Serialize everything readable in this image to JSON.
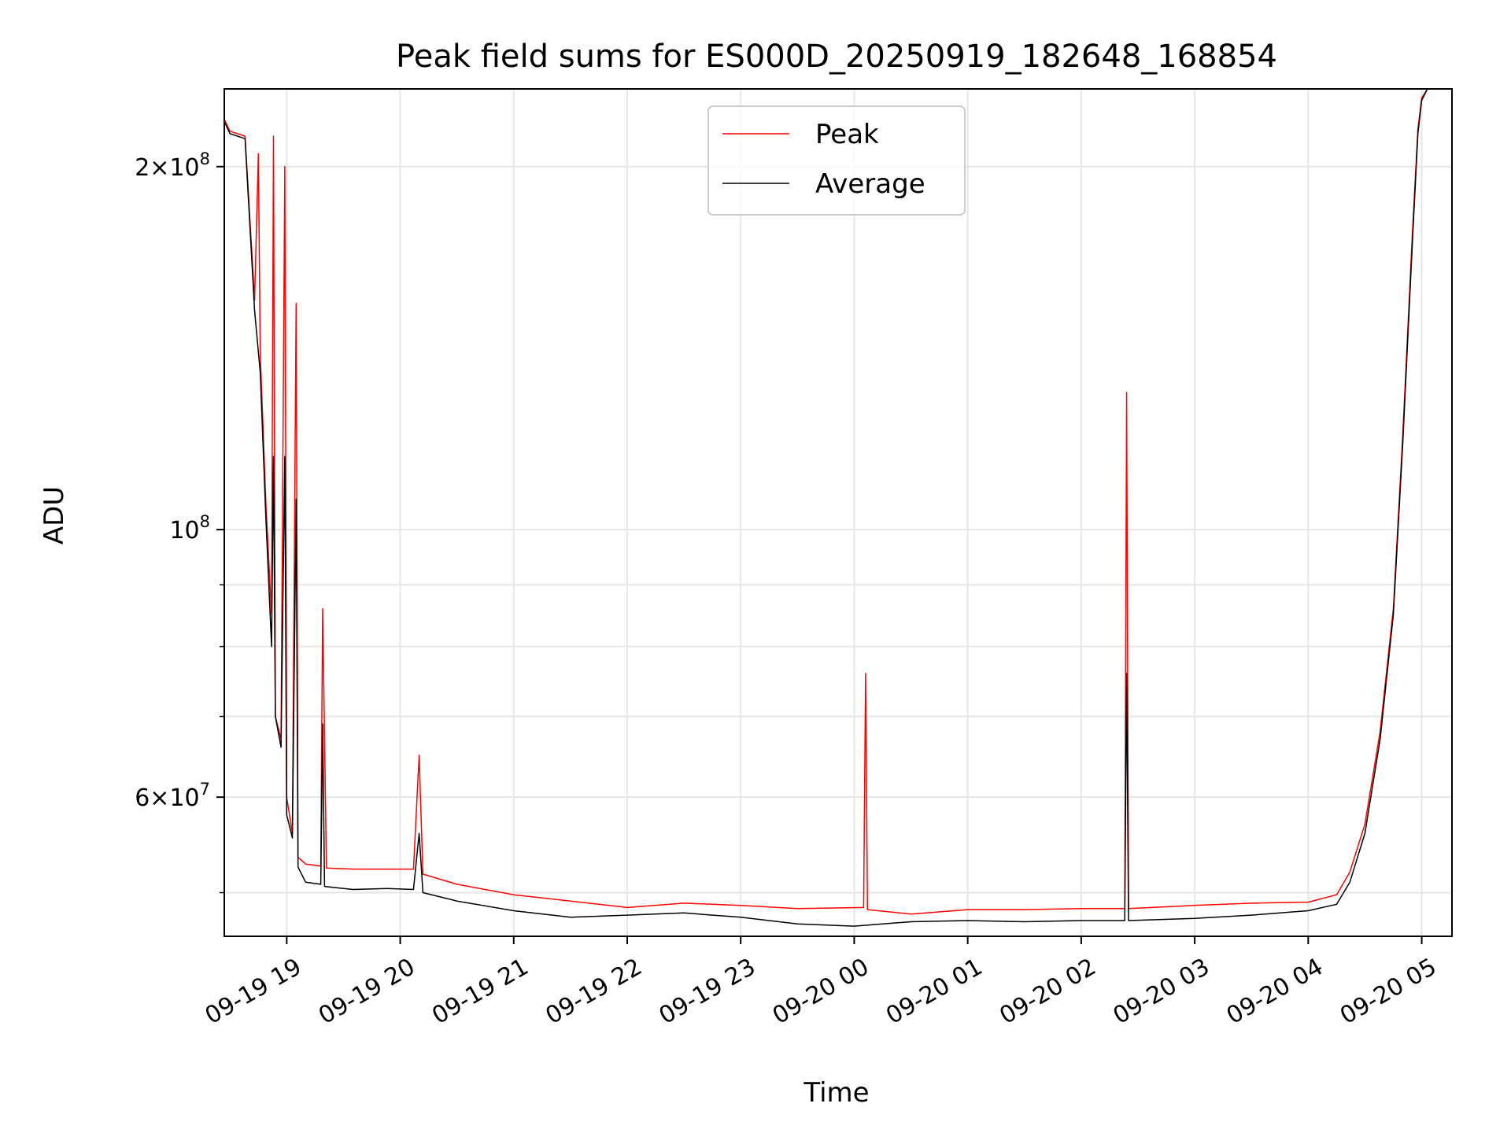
{
  "chart_data": {
    "type": "line",
    "title": "Peak field sums for ES000D_20250919_182648_168854",
    "xlabel": "Time",
    "ylabel": "ADU",
    "yscale": "log",
    "ylim": [
      46000000,
      232000000
    ],
    "xlim": [
      "2025-09-19 18:27",
      "2025-09-20 05:16"
    ],
    "grid": true,
    "legend_position": "upper center",
    "x_ticks": [
      {
        "t": "2025-09-19 19:00",
        "label": "09-19 19"
      },
      {
        "t": "2025-09-19 20:00",
        "label": "09-19 20"
      },
      {
        "t": "2025-09-19 21:00",
        "label": "09-19 21"
      },
      {
        "t": "2025-09-19 22:00",
        "label": "09-19 22"
      },
      {
        "t": "2025-09-19 23:00",
        "label": "09-19 23"
      },
      {
        "t": "2025-09-20 00:00",
        "label": "09-20 00"
      },
      {
        "t": "2025-09-20 01:00",
        "label": "09-20 01"
      },
      {
        "t": "2025-09-20 02:00",
        "label": "09-20 02"
      },
      {
        "t": "2025-09-20 03:00",
        "label": "09-20 03"
      },
      {
        "t": "2025-09-20 04:00",
        "label": "09-20 04"
      },
      {
        "t": "2025-09-20 05:00",
        "label": "09-20 05"
      }
    ],
    "y_ticks": [
      {
        "v": 60000000,
        "base": "6",
        "exp": "7",
        "sci": true
      },
      {
        "v": 100000000,
        "base": "10",
        "exp": "8",
        "sci": false
      },
      {
        "v": 200000000,
        "base": "2",
        "exp": "8",
        "sci": true
      }
    ],
    "y_minor_ticks": [
      50000000,
      70000000,
      80000000,
      90000000
    ],
    "series": [
      {
        "name": "Peak",
        "color": "#ff0000",
        "points": [
          [
            "2025-09-19 18:27",
            219000000
          ],
          [
            "2025-09-19 18:30",
            214000000
          ],
          [
            "2025-09-19 18:38",
            212000000
          ],
          [
            "2025-09-19 18:43",
            155000000
          ],
          [
            "2025-09-19 18:45",
            205000000
          ],
          [
            "2025-09-19 18:46",
            140000000
          ],
          [
            "2025-09-19 18:49",
            105000000
          ],
          [
            "2025-09-19 18:52",
            85000000
          ],
          [
            "2025-09-19 18:53",
            212000000
          ],
          [
            "2025-09-19 18:54",
            70000000
          ],
          [
            "2025-09-19 18:57",
            67000000
          ],
          [
            "2025-09-19 18:59",
            200000000
          ],
          [
            "2025-09-19 19:00",
            60000000
          ],
          [
            "2025-09-19 19:03",
            56000000
          ],
          [
            "2025-09-19 19:05",
            154000000
          ],
          [
            "2025-09-19 19:06",
            53500000
          ],
          [
            "2025-09-19 19:10",
            52800000
          ],
          [
            "2025-09-19 19:18",
            52600000
          ],
          [
            "2025-09-19 19:19",
            86000000
          ],
          [
            "2025-09-19 19:21",
            52400000
          ],
          [
            "2025-09-19 19:35",
            52300000
          ],
          [
            "2025-09-19 19:53",
            52300000
          ],
          [
            "2025-09-19 20:07",
            52300000
          ],
          [
            "2025-09-19 20:10",
            65000000
          ],
          [
            "2025-09-19 20:12",
            51800000
          ],
          [
            "2025-09-19 20:30",
            50800000
          ],
          [
            "2025-09-19 21:00",
            49800000
          ],
          [
            "2025-09-19 21:30",
            49200000
          ],
          [
            "2025-09-19 22:00",
            48600000
          ],
          [
            "2025-09-19 22:30",
            49000000
          ],
          [
            "2025-09-19 23:00",
            48800000
          ],
          [
            "2025-09-19 23:30",
            48500000
          ],
          [
            "2025-09-20 00:05",
            48600000
          ],
          [
            "2025-09-20 00:06",
            76000000
          ],
          [
            "2025-09-20 00:07",
            48400000
          ],
          [
            "2025-09-20 00:30",
            48000000
          ],
          [
            "2025-09-20 01:00",
            48400000
          ],
          [
            "2025-09-20 01:30",
            48400000
          ],
          [
            "2025-09-20 02:00",
            48500000
          ],
          [
            "2025-09-20 02:23",
            48500000
          ],
          [
            "2025-09-20 02:24",
            130000000
          ],
          [
            "2025-09-20 02:25",
            48500000
          ],
          [
            "2025-09-20 03:00",
            48800000
          ],
          [
            "2025-09-20 03:30",
            49000000
          ],
          [
            "2025-09-20 04:00",
            49100000
          ],
          [
            "2025-09-20 04:15",
            49800000
          ],
          [
            "2025-09-20 04:22",
            52000000
          ],
          [
            "2025-09-20 04:30",
            57000000
          ],
          [
            "2025-09-20 04:38",
            68000000
          ],
          [
            "2025-09-20 04:45",
            86000000
          ],
          [
            "2025-09-20 04:50",
            120000000
          ],
          [
            "2025-09-20 04:55",
            175000000
          ],
          [
            "2025-09-20 04:58",
            215000000
          ],
          [
            "2025-09-20 05:00",
            228000000
          ],
          [
            "2025-09-20 05:03",
            232000000
          ],
          [
            "2025-09-20 05:16",
            232000000
          ]
        ]
      },
      {
        "name": "Average",
        "color": "#000000",
        "points": [
          [
            "2025-09-19 18:27",
            218000000
          ],
          [
            "2025-09-19 18:30",
            213000000
          ],
          [
            "2025-09-19 18:38",
            211000000
          ],
          [
            "2025-09-19 18:43",
            152000000
          ],
          [
            "2025-09-19 18:46",
            135000000
          ],
          [
            "2025-09-19 18:49",
            102000000
          ],
          [
            "2025-09-19 18:52",
            80000000
          ],
          [
            "2025-09-19 18:53",
            115000000
          ],
          [
            "2025-09-19 18:54",
            70000000
          ],
          [
            "2025-09-19 18:57",
            66000000
          ],
          [
            "2025-09-19 18:59",
            115000000
          ],
          [
            "2025-09-19 19:00",
            58000000
          ],
          [
            "2025-09-19 19:03",
            55500000
          ],
          [
            "2025-09-19 19:05",
            106000000
          ],
          [
            "2025-09-19 19:06",
            52500000
          ],
          [
            "2025-09-19 19:10",
            51000000
          ],
          [
            "2025-09-19 19:18",
            50800000
          ],
          [
            "2025-09-19 19:19",
            69000000
          ],
          [
            "2025-09-19 19:20",
            50600000
          ],
          [
            "2025-09-19 19:35",
            50300000
          ],
          [
            "2025-09-19 19:53",
            50400000
          ],
          [
            "2025-09-19 20:07",
            50300000
          ],
          [
            "2025-09-19 20:10",
            56000000
          ],
          [
            "2025-09-19 20:12",
            50000000
          ],
          [
            "2025-09-19 20:30",
            49200000
          ],
          [
            "2025-09-19 21:00",
            48300000
          ],
          [
            "2025-09-19 21:30",
            47700000
          ],
          [
            "2025-09-19 22:00",
            47900000
          ],
          [
            "2025-09-19 22:30",
            48100000
          ],
          [
            "2025-09-19 23:00",
            47700000
          ],
          [
            "2025-09-19 23:30",
            47100000
          ],
          [
            "2025-09-20 00:00",
            46900000
          ],
          [
            "2025-09-20 00:30",
            47300000
          ],
          [
            "2025-09-20 01:00",
            47400000
          ],
          [
            "2025-09-20 01:30",
            47300000
          ],
          [
            "2025-09-20 02:00",
            47400000
          ],
          [
            "2025-09-20 02:23",
            47400000
          ],
          [
            "2025-09-20 02:24",
            76000000
          ],
          [
            "2025-09-20 02:25",
            47400000
          ],
          [
            "2025-09-20 03:00",
            47600000
          ],
          [
            "2025-09-20 03:30",
            47900000
          ],
          [
            "2025-09-20 04:00",
            48300000
          ],
          [
            "2025-09-20 04:15",
            48900000
          ],
          [
            "2025-09-20 04:22",
            51000000
          ],
          [
            "2025-09-20 04:30",
            56000000
          ],
          [
            "2025-09-20 04:38",
            67000000
          ],
          [
            "2025-09-20 04:45",
            85000000
          ],
          [
            "2025-09-20 04:50",
            118000000
          ],
          [
            "2025-09-20 04:55",
            172000000
          ],
          [
            "2025-09-20 04:58",
            213000000
          ],
          [
            "2025-09-20 05:00",
            227000000
          ],
          [
            "2025-09-20 05:03",
            232000000
          ],
          [
            "2025-09-20 05:16",
            232000000
          ]
        ]
      }
    ]
  }
}
